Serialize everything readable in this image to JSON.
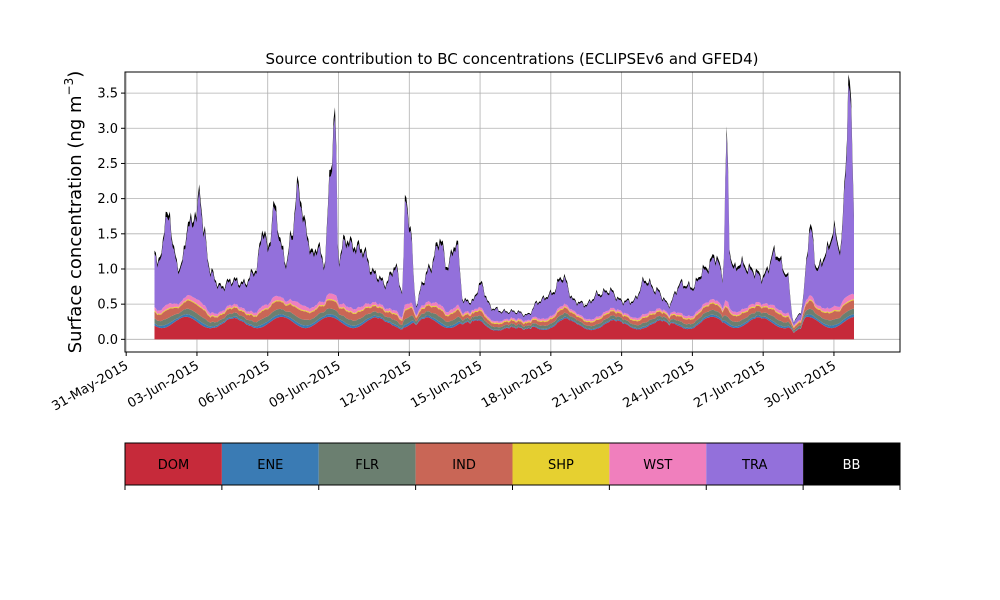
{
  "chart_data": {
    "type": "area",
    "title": "Source contribution to BC concentrations (ECLIPSEv6 and GFED4)",
    "ylabel": "Surface concentration (ng m",
    "ylabel_sup": "−3",
    "ylabel_close": ")",
    "ylim": [
      -0.18,
      3.8
    ],
    "yticks": [
      0.0,
      0.5,
      1.0,
      1.5,
      2.0,
      2.5,
      3.0,
      3.5
    ],
    "ytick_labels": [
      "0.0",
      "0.5",
      "1.0",
      "1.5",
      "2.0",
      "2.5",
      "3.0",
      "3.5"
    ],
    "xlim_days": [
      -0.05,
      32.8
    ],
    "xticks": [
      0,
      3,
      6,
      9,
      12,
      15,
      18,
      21,
      24,
      27,
      30
    ],
    "xtick_labels": [
      "31-May-2015",
      "03-Jun-2015",
      "06-Jun-2015",
      "09-Jun-2015",
      "12-Jun-2015",
      "15-Jun-2015",
      "18-Jun-2015",
      "21-Jun-2015",
      "24-Jun-2015",
      "27-Jun-2015",
      "30-Jun-2015"
    ],
    "grid": true,
    "legend_placement": "below",
    "series_names": [
      "DOM",
      "ENE",
      "FLR",
      "IND",
      "SHP",
      "WST",
      "TRA",
      "BB"
    ],
    "series_colors": [
      "#c62a3a",
      "#3a7bb4",
      "#6b7f70",
      "#c96656",
      "#e6d030",
      "#f07fbd",
      "#9370db",
      "#000000"
    ],
    "legend_text_colors": [
      "#000000",
      "#000000",
      "#000000",
      "#000000",
      "#000000",
      "#000000",
      "#000000",
      "#ffffff"
    ],
    "key_points": {
      "description": "Approximate day offsets since 31-May-2015 and stacked totals",
      "days": [
        1.2,
        1.35,
        1.7,
        1.85,
        2.0,
        2.3,
        2.6,
        2.9,
        3.0,
        3.1,
        3.3,
        3.6,
        4.0,
        4.5,
        5.0,
        5.5,
        5.8,
        6.0,
        6.3,
        6.6,
        6.8,
        7.0,
        7.3,
        7.6,
        7.9,
        8.1,
        8.4,
        8.7,
        8.85,
        9.0,
        9.3,
        9.6,
        10.0,
        10.5,
        11.0,
        11.4,
        11.7,
        11.85,
        12.0,
        12.3,
        12.6,
        12.9,
        13.3,
        13.6,
        14.0,
        14.3,
        14.7,
        15.0,
        15.5,
        16.0,
        16.5,
        17.0,
        17.5,
        18.0,
        18.5,
        19.0,
        19.5,
        20.0,
        20.5,
        21.0,
        21.5,
        22.0,
        22.5,
        23.0,
        23.5,
        24.0,
        24.5,
        25.0,
        25.3,
        25.45,
        25.6,
        25.8,
        26.0,
        26.5,
        27.0,
        27.5,
        28.0,
        28.3,
        28.6,
        29.0,
        29.3,
        29.6,
        30.0,
        30.3,
        30.5,
        30.6,
        30.7,
        30.85
      ],
      "totals": [
        1.35,
        1.05,
        1.7,
        1.85,
        1.25,
        1.0,
        1.6,
        1.8,
        1.7,
        2.25,
        1.5,
        0.95,
        0.75,
        0.85,
        0.8,
        1.0,
        1.6,
        1.3,
        1.9,
        1.3,
        1.1,
        1.5,
        2.2,
        1.6,
        1.2,
        1.35,
        1.1,
        2.6,
        3.25,
        1.15,
        1.45,
        1.35,
        1.3,
        0.95,
        0.8,
        1.05,
        0.7,
        2.1,
        1.7,
        0.5,
        0.85,
        1.05,
        1.45,
        1.05,
        1.4,
        0.55,
        0.55,
        0.8,
        0.45,
        0.4,
        0.4,
        0.35,
        0.55,
        0.65,
        0.9,
        0.55,
        0.5,
        0.65,
        0.7,
        0.55,
        0.55,
        0.85,
        0.7,
        0.5,
        0.8,
        0.75,
        1.0,
        1.2,
        0.9,
        2.92,
        1.2,
        1.0,
        1.1,
        1.0,
        0.9,
        1.25,
        0.95,
        0.25,
        0.4,
        1.6,
        1.0,
        1.2,
        1.55,
        1.3,
        2.5,
        3.6,
        3.5,
        1.95
      ]
    }
  }
}
